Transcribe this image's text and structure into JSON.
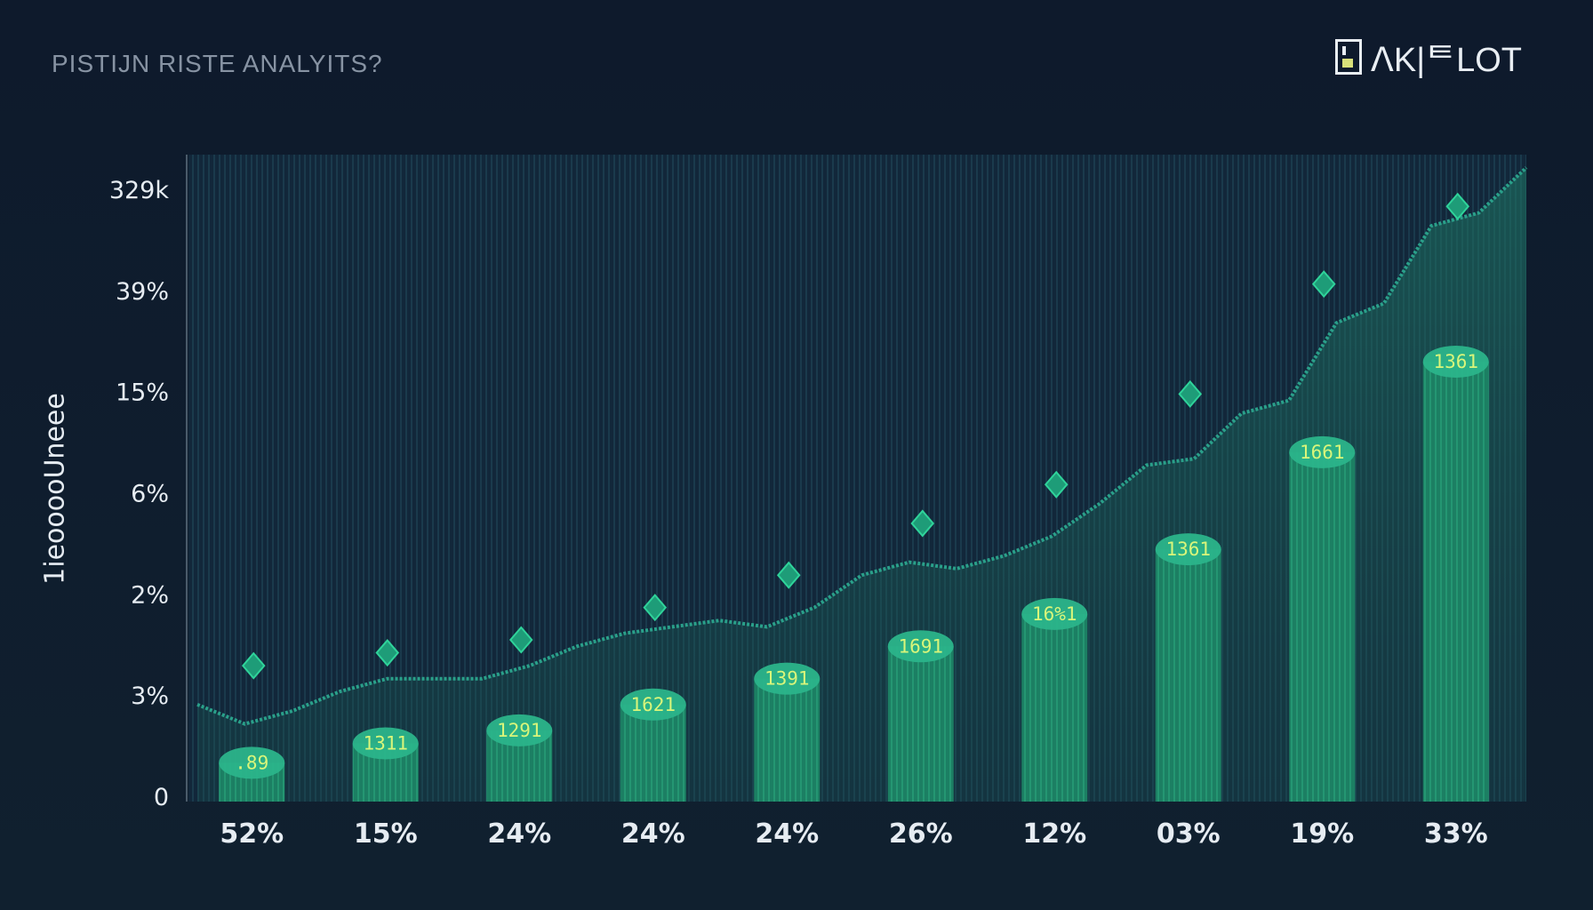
{
  "header": {
    "title": "PISTIJN RISTE ANALYITS?",
    "brand": "ᐱK|ᄐLOT"
  },
  "colors": {
    "background": "#0f1b2d",
    "bar": "#1e8f6e",
    "bar_top": "#2bb48a",
    "line": "#2aa08a",
    "marker": "#2fd39a",
    "bar_label": "#d9f57a",
    "text": "#e6ecf2"
  },
  "chart_data": {
    "type": "bar",
    "title": "PISTIJN RISTE ANALYITS?",
    "ylabel": "1ieooooUneee",
    "xlabel": "",
    "grid": true,
    "y_ticks": [
      "329k",
      "39%",
      "15%",
      "6%",
      "2%",
      "3%",
      "0"
    ],
    "categories": [
      "52%",
      "15%",
      "24%",
      "24%",
      "24%",
      "26%",
      "12%",
      "03%",
      "19%",
      "33%"
    ],
    "bar_labels": [
      ".89",
      "1311",
      "1291",
      "1621",
      "1391",
      "1691",
      "16%1",
      "1361",
      "1661",
      "1361"
    ],
    "values": [
      0.06,
      0.09,
      0.11,
      0.15,
      0.19,
      0.24,
      0.29,
      0.39,
      0.54,
      0.68
    ],
    "markers": [
      0.21,
      0.23,
      0.25,
      0.3,
      0.35,
      0.43,
      0.49,
      0.63,
      0.8,
      0.92
    ],
    "trend": [
      0.15,
      0.12,
      0.14,
      0.17,
      0.19,
      0.19,
      0.19,
      0.21,
      0.24,
      0.26,
      0.27,
      0.28,
      0.27,
      0.3,
      0.35,
      0.37,
      0.36,
      0.38,
      0.41,
      0.46,
      0.52,
      0.53,
      0.6,
      0.62,
      0.74,
      0.77,
      0.89,
      0.91,
      0.98
    ]
  }
}
